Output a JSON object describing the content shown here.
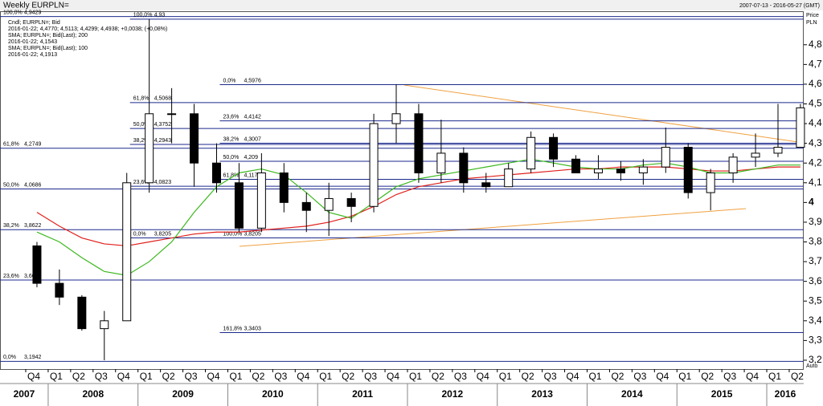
{
  "chart_data": {
    "type": "candlestick",
    "title": "Weekly EURPLN=",
    "date_range": "2007-07-13 - 2016-05-27 (GMT)",
    "axis_label": "Price",
    "currency": "PLN",
    "scale_mode": "Auto",
    "legend": [
      {
        "text": "Cndl; EURPLN=; Bid",
        "color": "#000000"
      },
      {
        "text": "2016-01-22; 4,4770; 4,5113; 4,4299; 4,4938; +0,0038; (+0,08%)",
        "color": "#000000"
      },
      {
        "text": "SMA; EURPLN=; Bid(Last); 200",
        "color": "#e0201c"
      },
      {
        "text": "2016-01-22; 4,1543",
        "color": "#e0201c"
      },
      {
        "text": "SMA; EURPLN=; Bid(Last); 100",
        "color": "#3cb81e"
      },
      {
        "text": "2016-01-22; 4,1913",
        "color": "#3cb81e"
      }
    ],
    "categories": [
      "Q4",
      "Q1",
      "Q2",
      "Q3",
      "Q4",
      "Q1",
      "Q2",
      "Q3",
      "Q4",
      "Q1",
      "Q2",
      "Q3",
      "Q4",
      "Q1",
      "Q2",
      "Q3",
      "Q4",
      "Q1",
      "Q2",
      "Q3",
      "Q4",
      "Q1",
      "Q2",
      "Q3",
      "Q4",
      "Q1",
      "Q2",
      "Q3",
      "Q4",
      "Q1",
      "Q2",
      "Q3",
      "Q4",
      "Q1",
      "Q2"
    ],
    "years": [
      {
        "label": "2007",
        "quarters": 1
      },
      {
        "label": "2008",
        "quarters": 4
      },
      {
        "label": "2009",
        "quarters": 4
      },
      {
        "label": "2010",
        "quarters": 4
      },
      {
        "label": "2011",
        "quarters": 4
      },
      {
        "label": "2012",
        "quarters": 4
      },
      {
        "label": "2013",
        "quarters": 4
      },
      {
        "label": "2014",
        "quarters": 4
      },
      {
        "label": "2015",
        "quarters": 4
      },
      {
        "label": "2016",
        "quarters": 2
      }
    ],
    "open": [
      3.78,
      3.59,
      3.52,
      3.36,
      3.4,
      4.1,
      4.45,
      4.45,
      4.2,
      4.1,
      3.87,
      4.15,
      4.0,
      3.96,
      4.02,
      3.98,
      4.4,
      4.45,
      4.15,
      4.25,
      4.1,
      4.08,
      4.17,
      4.33,
      4.22,
      4.15,
      4.17,
      4.15,
      4.18,
      4.28,
      4.05,
      4.15,
      4.23,
      4.25,
      4.28
    ],
    "high": [
      3.8,
      3.66,
      3.53,
      3.45,
      4.15,
      4.93,
      4.58,
      4.5,
      4.3,
      4.2,
      4.25,
      4.2,
      4.05,
      4.1,
      4.05,
      4.45,
      4.6,
      4.5,
      4.42,
      4.28,
      4.15,
      4.2,
      4.36,
      4.35,
      4.24,
      4.24,
      4.21,
      4.22,
      4.38,
      4.3,
      4.17,
      4.25,
      4.35,
      4.5,
      4.5
    ],
    "low": [
      3.57,
      3.48,
      3.35,
      3.2,
      3.4,
      4.05,
      4.3,
      4.08,
      4.05,
      3.85,
      3.85,
      3.95,
      3.85,
      3.83,
      3.9,
      3.95,
      4.3,
      4.1,
      4.1,
      4.05,
      4.05,
      4.08,
      4.15,
      4.18,
      4.15,
      4.12,
      4.11,
      4.09,
      4.15,
      4.02,
      3.96,
      4.1,
      4.18,
      4.23,
      4.28
    ],
    "close": [
      3.59,
      3.52,
      3.36,
      3.4,
      4.1,
      4.45,
      4.45,
      4.2,
      4.1,
      3.87,
      4.15,
      4.0,
      3.96,
      4.02,
      3.98,
      4.4,
      4.45,
      4.15,
      4.25,
      4.1,
      4.08,
      4.17,
      4.33,
      4.22,
      4.15,
      4.17,
      4.15,
      4.18,
      4.28,
      4.05,
      4.15,
      4.23,
      4.25,
      4.28,
      4.48
    ],
    "series": [
      {
        "name": "SMA 200",
        "color": "#e0201c",
        "values": [
          3.95,
          3.88,
          3.82,
          3.79,
          3.78,
          3.8,
          3.82,
          3.84,
          3.85,
          3.85,
          3.86,
          3.87,
          3.88,
          3.9,
          3.93,
          3.98,
          4.04,
          4.08,
          4.1,
          4.12,
          4.13,
          4.14,
          4.15,
          4.16,
          4.17,
          4.17,
          4.18,
          4.18,
          4.18,
          4.17,
          4.16,
          4.16,
          4.17,
          4.18,
          4.18
        ]
      },
      {
        "name": "SMA 100",
        "color": "#3cb81e",
        "values": [
          3.85,
          3.8,
          3.72,
          3.65,
          3.63,
          3.7,
          3.8,
          3.95,
          4.08,
          4.15,
          4.17,
          4.14,
          4.05,
          3.95,
          3.92,
          4.0,
          4.08,
          4.12,
          4.14,
          4.16,
          4.18,
          4.2,
          4.22,
          4.2,
          4.18,
          4.17,
          4.17,
          4.19,
          4.2,
          4.18,
          4.15,
          4.15,
          4.17,
          4.19,
          4.19
        ]
      }
    ],
    "fib_levels": [
      {
        "pct": "100,0%",
        "value": 4.9429,
        "label": "4,9429",
        "from": 0
      },
      {
        "pct": "61,8%",
        "value": 4.2749,
        "label": "4,2749",
        "from": 0
      },
      {
        "pct": "50,0%",
        "value": 4.0686,
        "label": "4,0686",
        "from": 0
      },
      {
        "pct": "38,2%",
        "value": 3.8622,
        "label": "3,8622",
        "from": 0
      },
      {
        "pct": "23,6%",
        "value": 3.6069,
        "label": "3,6069",
        "from": 0
      },
      {
        "pct": "0,0%",
        "value": 3.1942,
        "label": "3,1942",
        "from": 0
      },
      {
        "pct": "100,0%",
        "value": 4.93,
        "label": "4,93",
        "from": 5
      },
      {
        "pct": "61,8%",
        "value": 4.5068,
        "label": "4,5068",
        "from": 5
      },
      {
        "pct": "50,0%",
        "value": 4.3752,
        "label": "4,3752",
        "from": 5
      },
      {
        "pct": "38,2%",
        "value": 4.2943,
        "label": "4,2943",
        "from": 5
      },
      {
        "pct": "23,6%",
        "value": 4.0823,
        "label": "4,0823",
        "from": 5
      },
      {
        "pct": "0,0%",
        "value": 3.8205,
        "label": "3,8205",
        "from": 5
      },
      {
        "pct": "0,0%",
        "value": 4.5976,
        "label": "4,5976",
        "from": 9
      },
      {
        "pct": "23,6%",
        "value": 4.4142,
        "label": "4,4142",
        "from": 9
      },
      {
        "pct": "38,2%",
        "value": 4.3007,
        "label": "4,3007",
        "from": 9
      },
      {
        "pct": "50,0%",
        "value": 4.209,
        "label": "4,209",
        "from": 9
      },
      {
        "pct": "61,8%",
        "value": 4.1174,
        "label": "4,1174",
        "from": 9
      },
      {
        "pct": "100,0%",
        "value": 3.8205,
        "label": "3,8205",
        "from": 9
      },
      {
        "pct": "161,8%",
        "value": 3.3403,
        "label": "3,3403",
        "from": 9
      }
    ],
    "ylim": [
      3.155,
      4.97
    ],
    "yticks": [
      {
        "value": 3.2,
        "label": "3,2"
      },
      {
        "value": 3.3,
        "label": "3,3"
      },
      {
        "value": 3.4,
        "label": "3,4"
      },
      {
        "value": 3.5,
        "label": "3,5"
      },
      {
        "value": 3.6,
        "label": "3,6"
      },
      {
        "value": 3.7,
        "label": "3,7"
      },
      {
        "value": 3.8,
        "label": "3,8"
      },
      {
        "value": 3.9,
        "label": "3,9"
      },
      4,
      {
        "value": 4.1,
        "label": "4,1"
      },
      {
        "value": 4.2,
        "label": "4,2"
      },
      {
        "value": 4.3,
        "label": "4,3"
      },
      {
        "value": 4.4,
        "label": "4,4"
      },
      {
        "value": 4.5,
        "label": "4,5"
      },
      {
        "value": 4.6,
        "label": "4,6"
      },
      {
        "value": 4.7,
        "label": "4,7"
      },
      {
        "value": 4.8,
        "label": "4,8"
      }
    ],
    "candle_color": "#000000",
    "level_color": "#1c2a8c",
    "grid": true
  }
}
